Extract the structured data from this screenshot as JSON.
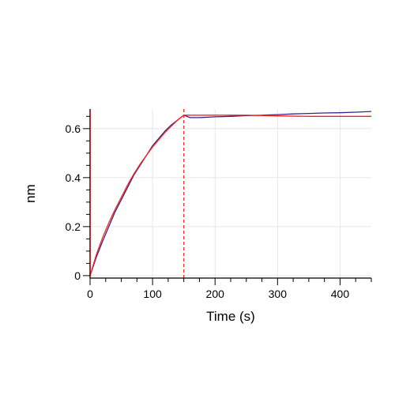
{
  "chart_data": {
    "type": "line",
    "title": "",
    "xlabel": "Time (s)",
    "ylabel": "nm",
    "xlim": [
      0,
      450
    ],
    "ylim": [
      -0.01,
      0.68
    ],
    "x_ticks": [
      0,
      100,
      200,
      300,
      400
    ],
    "y_ticks": [
      0,
      0.2,
      0.4,
      0.6
    ],
    "x_tick_labels": [
      "0",
      "100",
      "200",
      "300",
      "400"
    ],
    "y_tick_labels": [
      "0",
      "0.2",
      "0.4",
      "0.6"
    ],
    "grid": true,
    "dissociation_start_x": 150,
    "colors": {
      "measured": "#2b2b8c",
      "fit": "#ff2020",
      "grid": "#e6e6e6",
      "axis": "#000000",
      "zero_line": "#8b0000"
    },
    "series": [
      {
        "role": "measured",
        "x": [
          0,
          10,
          20,
          30,
          40,
          50,
          60,
          70,
          80,
          90,
          100,
          110,
          120,
          130,
          140,
          150,
          160,
          175,
          200,
          225,
          250,
          275,
          300,
          325,
          350,
          375,
          400,
          425,
          450
        ],
        "y": [
          0.0,
          0.075,
          0.14,
          0.2,
          0.26,
          0.31,
          0.36,
          0.41,
          0.45,
          0.49,
          0.53,
          0.56,
          0.59,
          0.615,
          0.635,
          0.655,
          0.645,
          0.645,
          0.648,
          0.65,
          0.653,
          0.655,
          0.657,
          0.66,
          0.662,
          0.664,
          0.665,
          0.667,
          0.67
        ]
      },
      {
        "role": "fit",
        "x": [
          0,
          10,
          20,
          30,
          40,
          50,
          60,
          70,
          80,
          90,
          100,
          110,
          120,
          130,
          140,
          150,
          200,
          250,
          300,
          350,
          400,
          450
        ],
        "y": [
          0.0,
          0.085,
          0.155,
          0.215,
          0.27,
          0.32,
          0.37,
          0.415,
          0.455,
          0.49,
          0.525,
          0.555,
          0.585,
          0.61,
          0.635,
          0.655,
          0.655,
          0.655,
          0.652,
          0.65,
          0.65,
          0.65
        ]
      }
    ]
  }
}
